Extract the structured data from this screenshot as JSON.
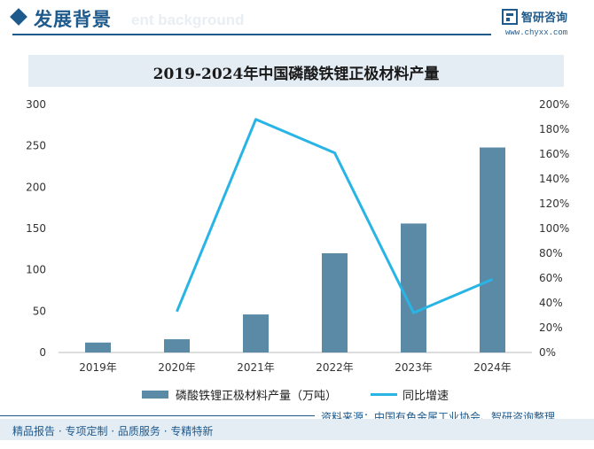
{
  "header": {
    "section_title": "发展背景",
    "section_ghost": "ent background",
    "logo_name": "智研咨询",
    "logo_url": "www.chyxx.com"
  },
  "colors": {
    "brand": "#1e5a8c",
    "bar": "#5a8aa6",
    "line": "#29b4e6",
    "band": "#e4ecf4"
  },
  "chart_data": {
    "type": "bar",
    "title": "2019-2024年中国磷酸铁锂正极材料产量",
    "categories": [
      "2019年",
      "2020年",
      "2021年",
      "2022年",
      "2023年",
      "2024年"
    ],
    "series": [
      {
        "name": "磷酸铁锂正极材料产量（万吨）",
        "type": "bar",
        "axis": "left",
        "values": [
          12,
          16,
          46,
          120,
          156,
          248
        ]
      },
      {
        "name": "同比增速",
        "type": "line",
        "axis": "right",
        "values": [
          null,
          33,
          188,
          161,
          32,
          59
        ]
      }
    ],
    "y_left": {
      "min": 0,
      "max": 300,
      "ticks": [
        "0",
        "50",
        "100",
        "150",
        "200",
        "250",
        "300"
      ]
    },
    "y_right": {
      "min": 0,
      "max": 200,
      "ticks": [
        "0%",
        "20%",
        "40%",
        "60%",
        "80%",
        "100%",
        "120%",
        "140%",
        "160%",
        "180%",
        "200%"
      ]
    },
    "legend_position": "bottom"
  },
  "source_text": "资料来源：中国有色金属工业协会、智研咨询整理",
  "footer_text": "精品报告 · 专项定制 · 品质服务 · 专精特新"
}
